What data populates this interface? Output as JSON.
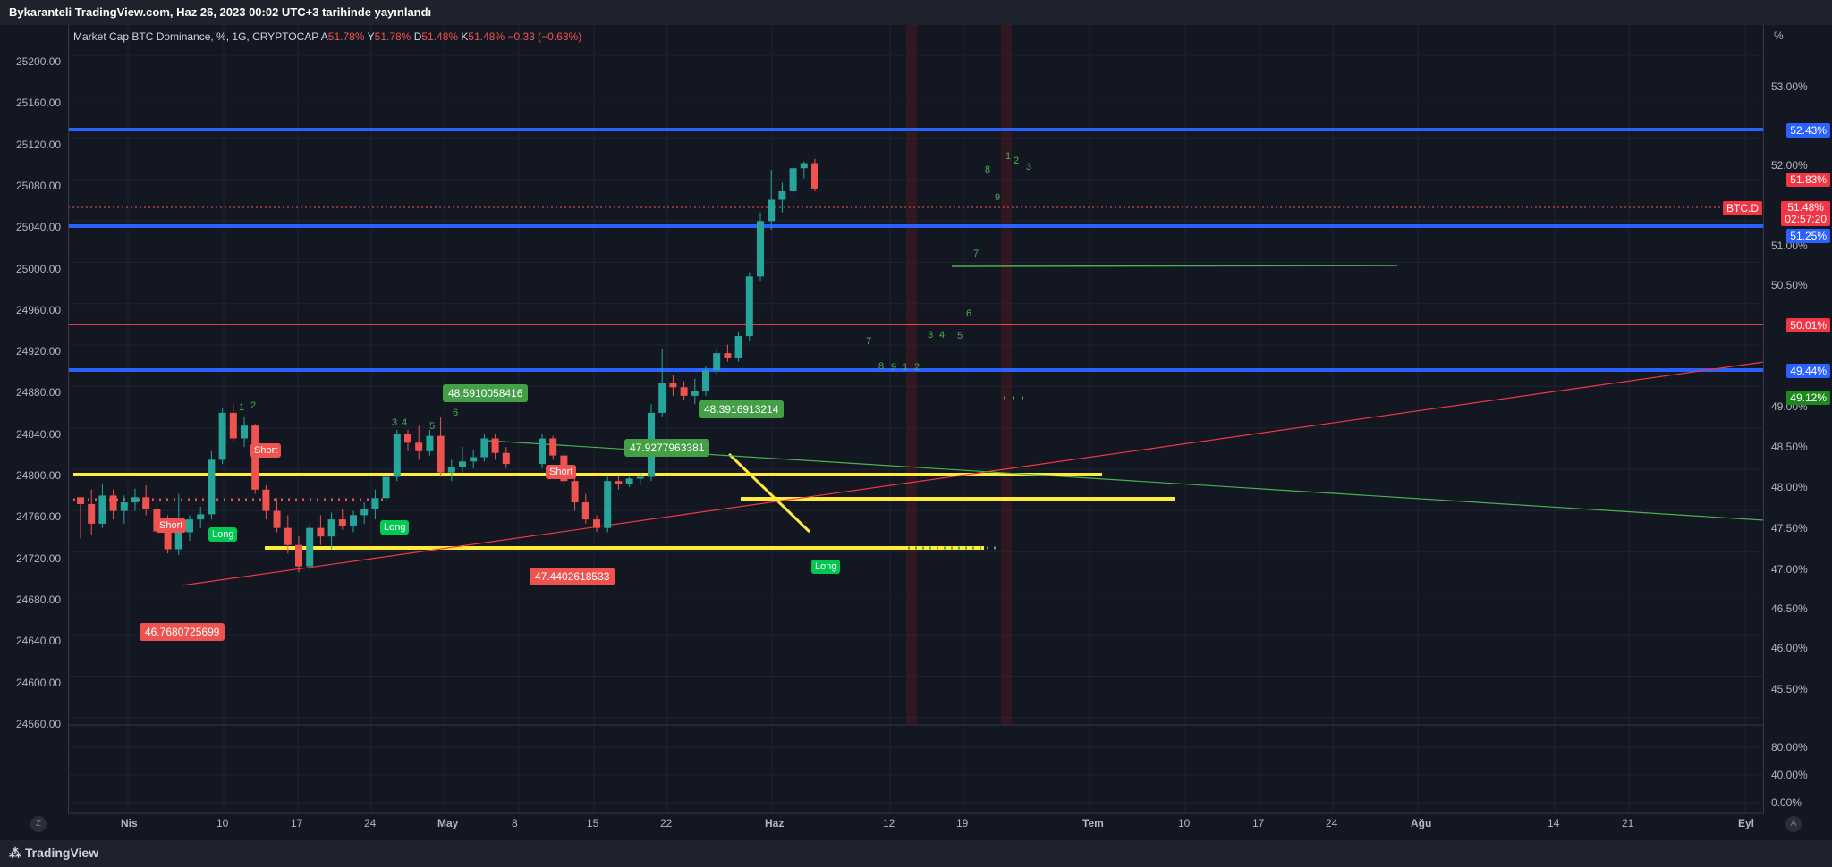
{
  "title_bar": {
    "text": "Bykaranteli TradingView.com, Haz 26, 2023 00:02 UTC+3 tarihinde yayınlandı"
  },
  "legend": {
    "symbol": "Market Cap BTC Dominance, %, 1G, CRYPTOCAP",
    "a_label": "A",
    "a_value": "51.78%",
    "y_label": "Y",
    "y_value": "51.78%",
    "d_label": "D",
    "d_value": "51.48%",
    "k_label": "K",
    "k_value": "51.48%",
    "change": "−0.33 (−0.63%)"
  },
  "left_axis": {
    "ticks": [
      "25200.00",
      "25160.00",
      "25120.00",
      "25080.00",
      "25040.00",
      "25000.00",
      "24960.00",
      "24920.00",
      "24880.00",
      "24840.00",
      "24800.00",
      "24760.00",
      "24720.00",
      "24680.00",
      "24640.00",
      "24600.00",
      "24560.00"
    ]
  },
  "right_axis": {
    "unit": "%",
    "ticks": [
      "53.00%",
      "52.00%",
      "51.00%",
      "50.50%",
      "49.00%",
      "48.50%",
      "48.00%",
      "47.50%",
      "47.00%",
      "46.50%",
      "46.00%",
      "45.50%"
    ],
    "osc_ticks": [
      "80.00%",
      "40.00%",
      "0.00%"
    ]
  },
  "price_tags": {
    "t1": "52.43%",
    "t2": "51.83%",
    "t3_symbol": "BTC.D",
    "t3_price": "51.48%",
    "t3_time": "02:57:20",
    "t4": "51.25%",
    "t5": "50.01%",
    "t6": "49.44%",
    "t7": "49.12%"
  },
  "x_axis": {
    "labels": [
      "Nis",
      "10",
      "17",
      "24",
      "May",
      "8",
      "15",
      "22",
      "Haz",
      "12",
      "19",
      "Tem",
      "10",
      "17",
      "24",
      "Ağu",
      "14",
      "21",
      "Eyl"
    ]
  },
  "annotations": {
    "a1": "48.5910058416",
    "a2": "48.3916913214",
    "a3": "47.9277963381",
    "a4": "47.4402618533",
    "a5": "46.7680725699"
  },
  "signals": {
    "short": "Short",
    "long": "Long"
  },
  "td_numbers": [
    "1",
    "2",
    "3",
    "4",
    "5",
    "6",
    "7",
    "8",
    "9"
  ],
  "buttons": {
    "z": "Z",
    "a": "A"
  },
  "footer": {
    "logo": "TradingView"
  },
  "colors": {
    "bg": "#131722",
    "up": "#26a69a",
    "down": "#ef5350",
    "blue_level": "#2962ff",
    "yellow": "#ffeb3b",
    "red_level": "#f23645",
    "green": "#4caf50"
  },
  "chart_data": {
    "type": "candlestick",
    "symbol": "BTC.D",
    "ylim": [
      45.2,
      53.4
    ],
    "ohlc": [
      [
        47.86,
        47.86,
        47.38,
        47.78
      ],
      [
        47.78,
        47.95,
        47.42,
        47.55
      ],
      [
        47.55,
        48.02,
        47.5,
        47.88
      ],
      [
        47.88,
        47.95,
        47.6,
        47.7
      ],
      [
        47.7,
        47.88,
        47.55,
        47.8
      ],
      [
        47.8,
        47.96,
        47.7,
        47.86
      ],
      [
        47.86,
        48.0,
        47.65,
        47.72
      ],
      [
        47.72,
        47.85,
        47.4,
        47.46
      ],
      [
        47.46,
        47.65,
        47.2,
        47.25
      ],
      [
        47.25,
        47.9,
        47.18,
        47.45
      ],
      [
        47.45,
        47.65,
        47.35,
        47.6
      ],
      [
        47.6,
        47.75,
        47.5,
        47.66
      ],
      [
        47.66,
        48.4,
        47.6,
        48.3
      ],
      [
        48.3,
        48.9,
        48.25,
        48.85
      ],
      [
        48.85,
        48.95,
        48.5,
        48.55
      ],
      [
        48.55,
        48.8,
        48.45,
        48.7
      ],
      [
        48.7,
        48.72,
        47.9,
        47.95
      ],
      [
        47.95,
        48.0,
        47.6,
        47.7
      ],
      [
        47.7,
        47.85,
        47.45,
        47.5
      ],
      [
        47.5,
        47.65,
        47.2,
        47.3
      ],
      [
        47.3,
        47.4,
        46.98,
        47.05
      ],
      [
        47.05,
        47.55,
        47.0,
        47.5
      ],
      [
        47.5,
        47.65,
        47.3,
        47.4
      ],
      [
        47.4,
        47.68,
        47.25,
        47.6
      ],
      [
        47.6,
        47.72,
        47.48,
        47.52
      ],
      [
        47.52,
        47.7,
        47.45,
        47.65
      ],
      [
        47.65,
        47.8,
        47.55,
        47.72
      ],
      [
        47.72,
        47.95,
        47.6,
        47.85
      ],
      [
        47.85,
        48.2,
        47.8,
        48.1
      ],
      [
        48.1,
        48.65,
        48.05,
        48.6
      ],
      [
        48.6,
        48.65,
        48.4,
        48.5
      ],
      [
        48.5,
        48.7,
        48.3,
        48.4
      ],
      [
        48.4,
        48.65,
        48.35,
        48.58
      ],
      [
        48.58,
        48.8,
        48.1,
        48.15
      ],
      [
        48.15,
        48.3,
        48.05,
        48.22
      ],
      [
        48.22,
        48.45,
        48.15,
        48.28
      ],
      [
        48.28,
        48.42,
        48.2,
        48.33
      ],
      [
        48.33,
        48.6,
        48.28,
        48.55
      ],
      [
        48.55,
        48.6,
        48.3,
        48.38
      ],
      [
        48.38,
        48.45,
        48.2,
        48.25
      ]
    ],
    "horizontal_levels": [
      52.43,
      51.25,
      50.01,
      49.44,
      47.78,
      47.3
    ]
  }
}
